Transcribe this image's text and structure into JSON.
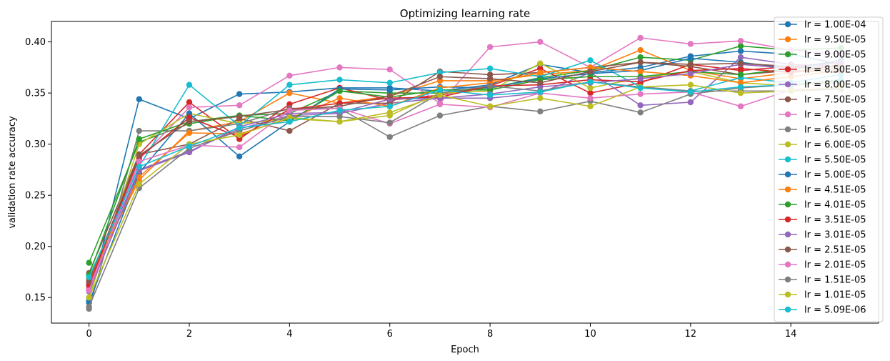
{
  "chart_data": {
    "type": "line",
    "title": "Optimizing learning rate",
    "xlabel": "Epoch",
    "ylabel": "validation rate accuracy",
    "xlim": [
      -0.75,
      15.75
    ],
    "ylim": [
      0.125,
      0.42
    ],
    "xticks": [
      0,
      2,
      4,
      6,
      8,
      10,
      12,
      14
    ],
    "yticks": [
      0.15,
      0.2,
      0.25,
      0.3,
      0.35,
      0.4
    ],
    "ytick_labels": [
      "0.15",
      "0.20",
      "0.25",
      "0.30",
      "0.35",
      "0.40"
    ],
    "grid": false,
    "legend_position": "right",
    "x": [
      0,
      1,
      2,
      3,
      4,
      5,
      6,
      7,
      8,
      9,
      10,
      11,
      12,
      13,
      14,
      15
    ],
    "series": [
      {
        "name": "lr = 1.00E-04",
        "color": "#1f77b4",
        "values": [
          0.147,
          0.344,
          0.325,
          0.349,
          0.351,
          0.355,
          0.355,
          0.352,
          0.358,
          0.378,
          0.37,
          0.375,
          0.386,
          0.391,
          0.388,
          0.378
        ]
      },
      {
        "name": "lr = 9.50E-05",
        "color": "#ff7f0e",
        "values": [
          0.168,
          0.265,
          0.313,
          0.322,
          0.35,
          0.34,
          0.347,
          0.362,
          0.362,
          0.368,
          0.372,
          0.392,
          0.372,
          0.364,
          0.37,
          0.375
        ]
      },
      {
        "name": "lr = 9.00E-05",
        "color": "#2ca02c",
        "values": [
          0.184,
          0.302,
          0.32,
          0.328,
          0.33,
          0.352,
          0.35,
          0.35,
          0.355,
          0.365,
          0.372,
          0.385,
          0.382,
          0.396,
          0.392,
          0.394
        ]
      },
      {
        "name": "lr = 8.50E-05",
        "color": "#d62728",
        "values": [
          0.158,
          0.29,
          0.341,
          0.305,
          0.339,
          0.355,
          0.343,
          0.348,
          0.357,
          0.374,
          0.35,
          0.36,
          0.378,
          0.372,
          0.376,
          0.38
        ]
      },
      {
        "name": "lr = 8.00E-05",
        "color": "#9467bd",
        "values": [
          0.164,
          0.275,
          0.293,
          0.315,
          0.328,
          0.33,
          0.34,
          0.345,
          0.345,
          0.35,
          0.37,
          0.338,
          0.341,
          0.385,
          0.378,
          0.376
        ]
      },
      {
        "name": "lr = 7.50E-05",
        "color": "#8c564b",
        "values": [
          0.174,
          0.29,
          0.3,
          0.325,
          0.313,
          0.34,
          0.34,
          0.371,
          0.368,
          0.37,
          0.375,
          0.38,
          0.376,
          0.368,
          0.372,
          0.37
        ]
      },
      {
        "name": "lr = 7.00E-05",
        "color": "#e377c2",
        "values": [
          0.16,
          0.285,
          0.336,
          0.338,
          0.367,
          0.375,
          0.373,
          0.34,
          0.395,
          0.4,
          0.375,
          0.404,
          0.398,
          0.401,
          0.392,
          0.388
        ]
      },
      {
        "name": "lr = 6.50E-05",
        "color": "#7f7f7f",
        "values": [
          0.139,
          0.313,
          0.313,
          0.32,
          0.335,
          0.335,
          0.307,
          0.328,
          0.337,
          0.332,
          0.342,
          0.331,
          0.349,
          0.355,
          0.358,
          0.36
        ]
      },
      {
        "name": "lr = 6.00E-05",
        "color": "#bcbd22",
        "values": [
          0.15,
          0.3,
          0.33,
          0.32,
          0.325,
          0.322,
          0.328,
          0.35,
          0.352,
          0.379,
          0.355,
          0.365,
          0.371,
          0.36,
          0.357,
          0.362
        ]
      },
      {
        "name": "lr = 5.50E-05",
        "color": "#17becf",
        "values": [
          0.17,
          0.278,
          0.358,
          0.318,
          0.358,
          0.363,
          0.36,
          0.37,
          0.374,
          0.366,
          0.382,
          0.356,
          0.352,
          0.365,
          0.36,
          0.368
        ]
      },
      {
        "name": "lr = 5.00E-05",
        "color": "#1f77b4",
        "values": [
          0.145,
          0.272,
          0.33,
          0.288,
          0.322,
          0.354,
          0.353,
          0.356,
          0.355,
          0.364,
          0.369,
          0.372,
          0.384,
          0.38,
          0.374,
          0.382
        ]
      },
      {
        "name": "lr = 4.51E-05",
        "color": "#ff7f0e",
        "values": [
          0.166,
          0.268,
          0.311,
          0.31,
          0.325,
          0.345,
          0.337,
          0.355,
          0.36,
          0.37,
          0.375,
          0.371,
          0.367,
          0.36,
          0.366,
          0.372
        ]
      },
      {
        "name": "lr = 4.01E-05",
        "color": "#2ca02c",
        "values": [
          0.172,
          0.305,
          0.322,
          0.328,
          0.323,
          0.352,
          0.346,
          0.353,
          0.353,
          0.363,
          0.366,
          0.366,
          0.371,
          0.368,
          0.374,
          0.376
        ]
      },
      {
        "name": "lr = 3.51E-05",
        "color": "#d62728",
        "values": [
          0.162,
          0.287,
          0.326,
          0.307,
          0.334,
          0.34,
          0.345,
          0.346,
          0.357,
          0.358,
          0.363,
          0.361,
          0.372,
          0.374,
          0.37,
          0.378
        ]
      },
      {
        "name": "lr = 3.01E-05",
        "color": "#9467bd",
        "values": [
          0.156,
          0.274,
          0.292,
          0.317,
          0.33,
          0.331,
          0.344,
          0.345,
          0.349,
          0.356,
          0.36,
          0.364,
          0.369,
          0.378,
          0.374,
          0.38
        ]
      },
      {
        "name": "lr = 2.51E-05",
        "color": "#8c564b",
        "values": [
          0.166,
          0.289,
          0.322,
          0.327,
          0.334,
          0.337,
          0.347,
          0.366,
          0.364,
          0.36,
          0.371,
          0.38,
          0.378,
          0.379,
          0.376,
          0.372
        ]
      },
      {
        "name": "lr = 2.01E-05",
        "color": "#e377c2",
        "values": [
          0.157,
          0.283,
          0.299,
          0.297,
          0.333,
          0.335,
          0.32,
          0.339,
          0.336,
          0.35,
          0.345,
          0.349,
          0.351,
          0.337,
          0.353,
          0.355
        ]
      },
      {
        "name": "lr = 1.51E-05",
        "color": "#7f7f7f",
        "values": [
          0.141,
          0.257,
          0.296,
          0.313,
          0.327,
          0.327,
          0.321,
          0.35,
          0.357,
          0.352,
          0.361,
          0.356,
          0.352,
          0.352,
          0.352,
          0.354
        ]
      },
      {
        "name": "lr = 1.01E-05",
        "color": "#bcbd22",
        "values": [
          0.15,
          0.261,
          0.3,
          0.309,
          0.326,
          0.322,
          0.331,
          0.348,
          0.337,
          0.345,
          0.337,
          0.356,
          0.358,
          0.35,
          0.352,
          0.356
        ]
      },
      {
        "name": "lr = 5.09E-06",
        "color": "#17becf",
        "values": [
          0.17,
          0.278,
          0.298,
          0.316,
          0.322,
          0.333,
          0.337,
          0.353,
          0.348,
          0.351,
          0.361,
          0.355,
          0.351,
          0.356,
          0.358,
          0.363
        ]
      }
    ]
  }
}
